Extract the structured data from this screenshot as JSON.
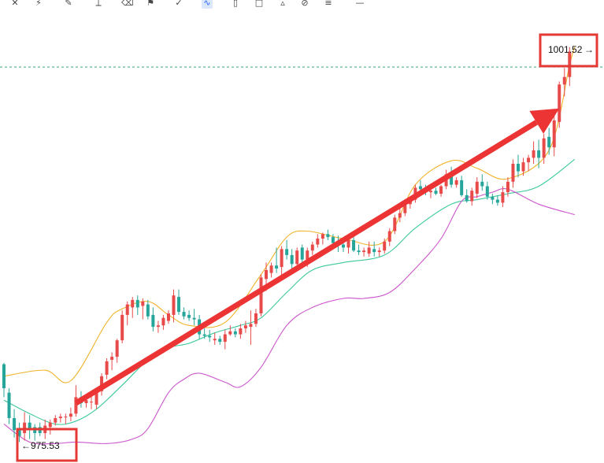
{
  "toolbar": {
    "icons": [
      "crosshair-icon",
      "pattern-icon",
      "brush-icon",
      "ruler-icon",
      "eraser-icon",
      "bookmark-icon",
      "check-icon",
      "pattern-wave-icon",
      "candles-icon",
      "box-icon",
      "chart-icon",
      "clip-icon",
      "lines-icon",
      "dash-icon"
    ],
    "active": "pattern-wave-icon"
  },
  "chart_data": {
    "type": "candlestick",
    "title": "",
    "xlabel": "",
    "ylabel": "",
    "ylim": [
      974,
      1004
    ],
    "colors": {
      "up": "#e84a4a",
      "down": "#26a69a",
      "upper_band": "#f0b32a",
      "middle_band": "#3cc99c",
      "lower_band": "#cc55cc",
      "arrow": "#ec3434",
      "box": "#e53935",
      "price_line": "#3aa878"
    },
    "candles": [
      [
        980.6,
        980.7,
        978.4,
        979.0
      ],
      [
        978.7,
        979.0,
        976.6,
        977.0
      ],
      [
        977.0,
        977.6,
        975.7,
        976.2
      ],
      [
        976.3,
        976.7,
        975.4,
        975.8
      ],
      [
        976.0,
        977.4,
        975.5,
        976.7
      ],
      [
        976.7,
        977.2,
        975.6,
        976.2
      ],
      [
        976.4,
        976.6,
        975.5,
        976.0
      ],
      [
        976.4,
        976.7,
        975.8,
        976.0
      ],
      [
        976.0,
        976.9,
        975.6,
        976.5
      ],
      [
        976.4,
        976.9,
        975.9,
        976.7
      ],
      [
        976.7,
        977.2,
        976.5,
        977.0
      ],
      [
        977.0,
        977.3,
        976.7,
        977.1
      ],
      [
        977.1,
        977.3,
        976.6,
        977.1
      ],
      [
        977.1,
        977.7,
        976.8,
        977.3
      ],
      [
        977.3,
        979.2,
        977.1,
        978.4
      ],
      [
        978.4,
        978.8,
        977.7,
        978.0
      ],
      [
        978.0,
        978.5,
        977.7,
        978.2
      ],
      [
        978.1,
        978.6,
        977.6,
        978.1
      ],
      [
        977.9,
        979.0,
        977.6,
        978.8
      ],
      [
        978.8,
        980.0,
        978.5,
        979.8
      ],
      [
        979.9,
        981.0,
        979.6,
        980.8
      ],
      [
        980.9,
        981.4,
        980.2,
        981.1
      ],
      [
        981.1,
        982.3,
        980.7,
        982.2
      ],
      [
        982.2,
        984.2,
        982.0,
        983.9
      ],
      [
        983.9,
        984.8,
        983.2,
        984.6
      ],
      [
        984.4,
        985.1,
        983.7,
        984.9
      ],
      [
        984.9,
        985.2,
        983.9,
        984.4
      ],
      [
        984.5,
        985.0,
        983.6,
        984.8
      ],
      [
        984.6,
        984.9,
        983.6,
        983.8
      ],
      [
        983.9,
        984.4,
        982.8,
        983.1
      ],
      [
        983.1,
        983.5,
        982.7,
        983.2
      ],
      [
        983.2,
        983.9,
        982.9,
        983.7
      ],
      [
        983.5,
        984.2,
        983.3,
        984.0
      ],
      [
        983.9,
        985.6,
        983.4,
        985.2
      ],
      [
        985.1,
        985.6,
        983.9,
        984.1
      ],
      [
        984.1,
        984.4,
        983.6,
        983.8
      ],
      [
        983.9,
        984.2,
        983.5,
        983.7
      ],
      [
        983.7,
        984.3,
        983.2,
        983.6
      ],
      [
        983.6,
        983.9,
        982.3,
        982.6
      ],
      [
        982.6,
        983.0,
        982.3,
        982.5
      ],
      [
        982.5,
        982.9,
        982.1,
        982.4
      ],
      [
        982.2,
        982.7,
        981.9,
        982.3
      ],
      [
        982.3,
        982.5,
        981.9,
        982.1
      ],
      [
        982.1,
        982.9,
        981.6,
        982.6
      ],
      [
        982.6,
        983.2,
        982.5,
        982.8
      ],
      [
        982.8,
        983.0,
        982.4,
        982.6
      ],
      [
        982.6,
        983.3,
        982.3,
        983.0
      ],
      [
        983.0,
        983.5,
        982.7,
        983.2
      ],
      [
        983.1,
        984.2,
        981.9,
        983.3
      ],
      [
        983.3,
        984.3,
        983.1,
        984.0
      ],
      [
        984.0,
        986.6,
        983.8,
        986.4
      ],
      [
        986.3,
        987.4,
        985.5,
        986.9
      ],
      [
        986.7,
        987.4,
        986.4,
        987.2
      ],
      [
        987.2,
        988.4,
        986.7,
        987.0
      ],
      [
        987.1,
        988.5,
        986.5,
        988.3
      ],
      [
        988.3,
        988.9,
        987.6,
        987.9
      ],
      [
        987.9,
        988.3,
        986.8,
        987.3
      ],
      [
        987.3,
        988.4,
        987.0,
        988.2
      ],
      [
        988.4,
        988.6,
        987.2,
        987.6
      ],
      [
        987.6,
        988.4,
        987.1,
        988.2
      ],
      [
        988.2,
        988.8,
        987.9,
        988.6
      ],
      [
        988.6,
        989.3,
        988.4,
        989.0
      ],
      [
        989.0,
        989.4,
        988.6,
        989.3
      ],
      [
        989.3,
        989.6,
        988.9,
        989.1
      ],
      [
        989.1,
        989.3,
        988.4,
        988.7
      ],
      [
        988.7,
        989.2,
        988.1,
        988.6
      ],
      [
        988.6,
        988.9,
        988.1,
        988.4
      ],
      [
        988.4,
        989.1,
        988.0,
        988.9
      ],
      [
        988.9,
        989.1,
        988.1,
        988.2
      ],
      [
        988.2,
        988.6,
        987.9,
        988.1
      ],
      [
        988.1,
        988.4,
        987.8,
        988.2
      ],
      [
        988.0,
        988.8,
        987.8,
        988.4
      ],
      [
        988.3,
        988.8,
        987.8,
        988.1
      ],
      [
        988.1,
        988.4,
        987.8,
        988.2
      ],
      [
        988.2,
        989.0,
        988.0,
        988.8
      ],
      [
        988.8,
        989.7,
        988.5,
        989.5
      ],
      [
        989.5,
        990.6,
        989.3,
        990.4
      ],
      [
        990.4,
        991.1,
        990.1,
        990.7
      ],
      [
        990.7,
        991.5,
        990.5,
        991.3
      ],
      [
        991.3,
        991.8,
        991.0,
        991.6
      ],
      [
        991.6,
        992.6,
        991.4,
        992.4
      ],
      [
        992.5,
        992.9,
        992.1,
        992.3
      ],
      [
        992.3,
        992.6,
        991.9,
        992.1
      ],
      [
        992.1,
        992.4,
        991.7,
        992.2
      ],
      [
        992.2,
        992.4,
        991.9,
        992.0
      ],
      [
        992.0,
        992.6,
        991.8,
        992.5
      ],
      [
        992.5,
        993.6,
        992.3,
        993.3
      ],
      [
        993.3,
        993.8,
        992.4,
        992.6
      ],
      [
        992.6,
        993.1,
        992.4,
        992.9
      ],
      [
        992.9,
        993.2,
        991.8,
        991.9
      ],
      [
        991.9,
        992.3,
        991.4,
        991.5
      ],
      [
        991.5,
        992.4,
        991.2,
        992.2
      ],
      [
        992.0,
        993.1,
        991.7,
        992.8
      ],
      [
        992.8,
        993.3,
        992.2,
        992.5
      ],
      [
        992.5,
        992.8,
        991.6,
        991.8
      ],
      [
        991.8,
        992.0,
        991.3,
        991.6
      ],
      [
        991.6,
        991.9,
        991.2,
        991.4
      ],
      [
        991.4,
        992.5,
        991.1,
        992.1
      ],
      [
        992.1,
        993.1,
        991.8,
        992.8
      ],
      [
        992.8,
        994.3,
        992.4,
        994.0
      ],
      [
        994.0,
        994.6,
        993.1,
        993.5
      ],
      [
        993.5,
        994.4,
        993.2,
        994.1
      ],
      [
        994.1,
        994.6,
        993.5,
        994.4
      ],
      [
        994.4,
        995.5,
        994.0,
        994.9
      ],
      [
        994.9,
        995.6,
        993.7,
        994.4
      ],
      [
        994.4,
        996.0,
        994.0,
        995.7
      ],
      [
        995.8,
        996.4,
        994.6,
        995.1
      ],
      [
        995.1,
        997.5,
        994.5,
        996.9
      ],
      [
        996.8,
        999.5,
        996.4,
        999.3
      ],
      [
        999.3,
        1000.4,
        998.5,
        999.8
      ],
      [
        999.8,
        1001.8,
        999.2,
        1001.5
      ]
    ],
    "bollinger": {
      "upper_anchor_values": [
        [
          0,
          979.8
        ],
        [
          8,
          980.2
        ],
        [
          13,
          979.5
        ],
        [
          20,
          983.4
        ],
        [
          23,
          984.3
        ],
        [
          28,
          984.8
        ],
        [
          32,
          983.9
        ],
        [
          36,
          983.2
        ],
        [
          43,
          983.4
        ],
        [
          50,
          986.6
        ],
        [
          55,
          989.1
        ],
        [
          59,
          989.5
        ],
        [
          66,
          989.0
        ],
        [
          74,
          988.8
        ],
        [
          80,
          992.6
        ],
        [
          87,
          994.2
        ],
        [
          92,
          993.7
        ],
        [
          98,
          993.0
        ],
        [
          106,
          994.9
        ],
        [
          110,
          1000.6
        ],
        [
          111,
          1001.8
        ]
      ],
      "middle_anchor_values": [
        [
          0,
          978.2
        ],
        [
          5,
          977.3
        ],
        [
          10,
          976.6
        ],
        [
          14,
          976.8
        ],
        [
          18,
          977.6
        ],
        [
          23,
          979.2
        ],
        [
          28,
          980.9
        ],
        [
          32,
          981.7
        ],
        [
          36,
          982.0
        ],
        [
          41,
          982.7
        ],
        [
          46,
          983.2
        ],
        [
          50,
          983.7
        ],
        [
          55,
          985.4
        ],
        [
          60,
          986.9
        ],
        [
          66,
          987.4
        ],
        [
          74,
          987.9
        ],
        [
          80,
          989.7
        ],
        [
          87,
          991.3
        ],
        [
          92,
          991.6
        ],
        [
          98,
          992.0
        ],
        [
          104,
          992.5
        ],
        [
          111,
          994.3
        ]
      ],
      "lower_anchor_values": [
        [
          0,
          976.6
        ],
        [
          5,
          975.4
        ],
        [
          10,
          975.3
        ],
        [
          14,
          975.4
        ],
        [
          20,
          975.3
        ],
        [
          25,
          975.6
        ],
        [
          28,
          976.3
        ],
        [
          32,
          978.7
        ],
        [
          35,
          979.6
        ],
        [
          38,
          980.0
        ],
        [
          43,
          979.4
        ],
        [
          46,
          979.1
        ],
        [
          50,
          980.4
        ],
        [
          55,
          983.2
        ],
        [
          60,
          984.4
        ],
        [
          66,
          985.0
        ],
        [
          70,
          985.0
        ],
        [
          75,
          985.4
        ],
        [
          80,
          987.0
        ],
        [
          85,
          989.0
        ],
        [
          89,
          991.5
        ],
        [
          92,
          991.8
        ],
        [
          95,
          992.1
        ],
        [
          98,
          992.3
        ],
        [
          104,
          991.3
        ],
        [
          111,
          990.6
        ]
      ]
    },
    "annotations": {
      "high_label": "1001.52",
      "high_arrow": "→",
      "low_label": "975.53",
      "low_arrow": "←",
      "high_value": 1001.52,
      "low_value": 975.53,
      "trend_arrow_from": [
        14,
        978.0
      ],
      "trend_arrow_to": [
        108,
        997.7
      ]
    }
  }
}
